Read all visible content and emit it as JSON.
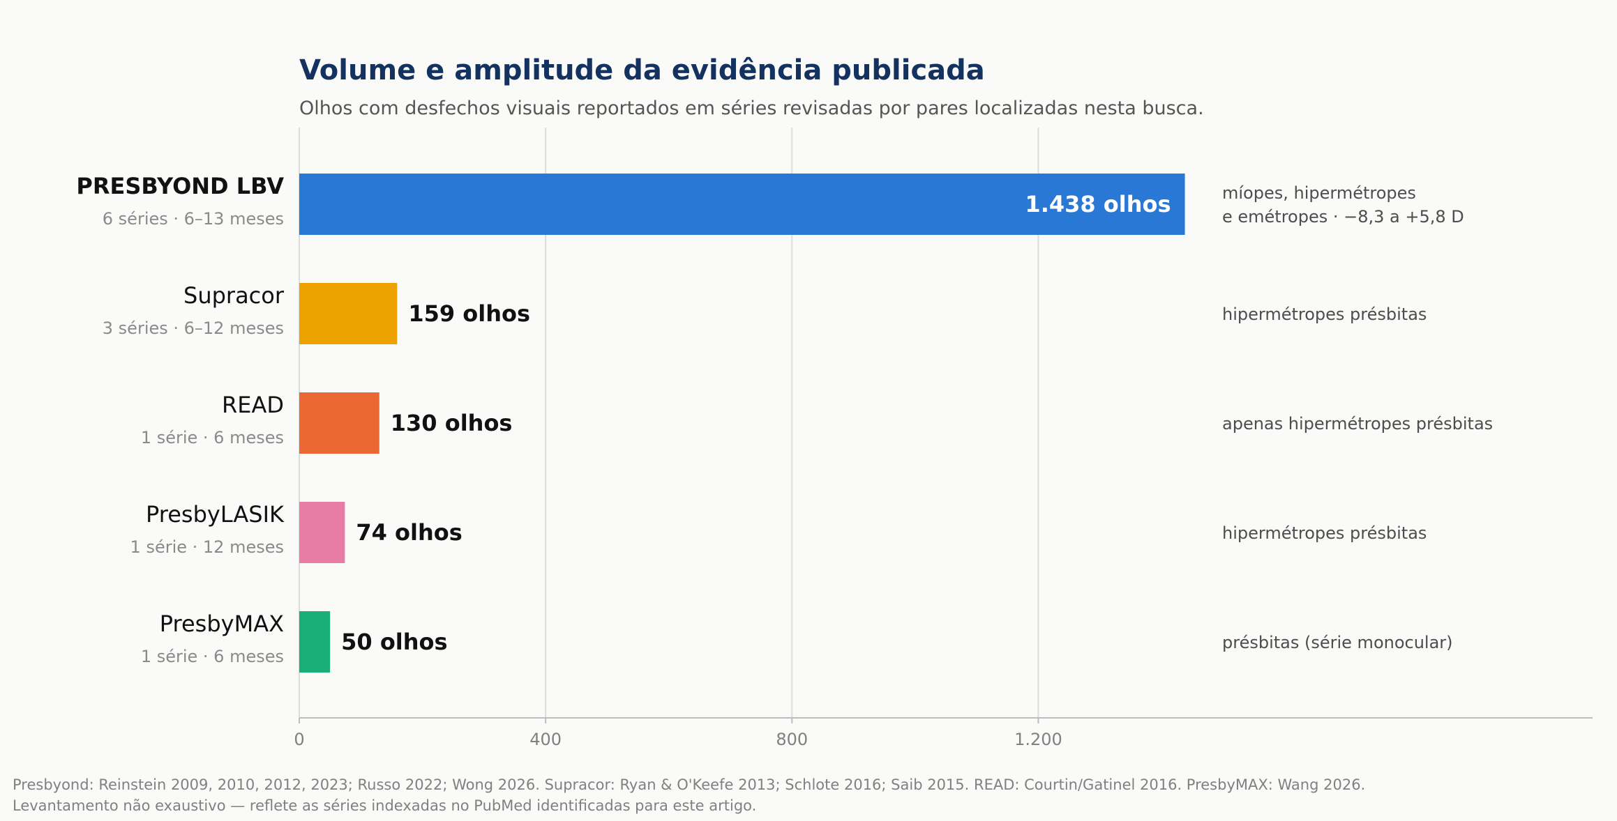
{
  "chart_data": {
    "type": "bar",
    "orientation": "horizontal",
    "title": "Volume e amplitude da evidência publicada",
    "subtitle": "Olhos com desfechos visuais reportados em séries revisadas por pares localizadas nesta busca.",
    "categories": [
      "PRESBYOND LBV",
      "Supracor",
      "READ",
      "PresbyLASIK",
      "PresbyMAX"
    ],
    "category_subtitles": [
      "6 séries · 6–13 meses",
      "3 séries · 6–12 meses",
      "1 série · 6 meses",
      "1 série · 12 meses",
      "1 série · 6 meses"
    ],
    "values": [
      1438,
      159,
      130,
      74,
      50
    ],
    "value_labels": [
      "1.438 olhos",
      "159 olhos",
      "130 olhos",
      "74 olhos",
      "50 olhos"
    ],
    "notes": [
      [
        "míopes, hipermétropes",
        "e emétropes · −8,3 a +5,8 D"
      ],
      [
        "hipermétropes présbitas"
      ],
      [
        "apenas hipermétropes présbitas"
      ],
      [
        "hipermétropes présbitas"
      ],
      [
        "présbitas (série monocular)"
      ]
    ],
    "colors": [
      "#2a78d6",
      "#eea200",
      "#eb6834",
      "#e87ca5",
      "#1aae79"
    ],
    "highlight_index": 0,
    "xlim": [
      0,
      2100
    ],
    "xticks": [
      0,
      400,
      800,
      1200
    ],
    "xtick_labels": [
      "0",
      "400",
      "800",
      "1.200"
    ],
    "grid": "vertical",
    "xlabel": "",
    "ylabel": ""
  },
  "footer": {
    "line1": "Presbyond: Reinstein 2009, 2010, 2012, 2023; Russo 2022; Wong 2026. Supracor: Ryan & O'Keefe 2013; Schlote 2016; Saib 2015. READ: Courtin/Gatinel 2016. PresbyMAX: Wang 2026.",
    "line2": "Levantamento não exaustivo — reflete as séries indexadas no PubMed identificadas para este artigo."
  }
}
